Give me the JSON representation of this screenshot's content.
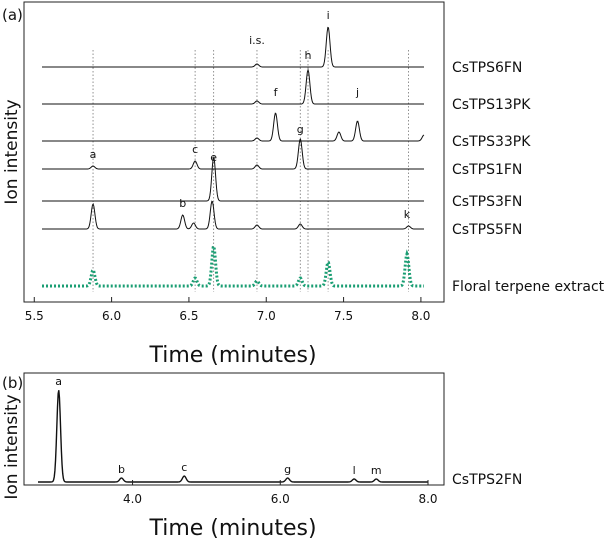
{
  "chart_data": [
    {
      "type": "line",
      "panel_label": "(a)",
      "xlabel": "Time (minutes)",
      "ylabel": "Ion intensity",
      "xlim": [
        5.42,
        8.05
      ],
      "xticks": [
        "5.5",
        "6.0",
        "6.5",
        "7.0",
        "7.5",
        "8.0"
      ],
      "grid": false,
      "series": [
        {
          "name": "CsTPS6FN",
          "baseline": 0,
          "color": "#111111",
          "dotted": false,
          "peaks": [
            {
              "x": 6.94,
              "h": 3
            },
            {
              "x": 7.4,
              "h": 40
            }
          ]
        },
        {
          "name": "CsTPS13PK",
          "baseline": 1,
          "color": "#111111",
          "dotted": false,
          "peaks": [
            {
              "x": 6.94,
              "h": 3
            },
            {
              "x": 7.27,
              "h": 34
            }
          ]
        },
        {
          "name": "CsTPS33PK",
          "baseline": 2,
          "color": "#111111",
          "dotted": false,
          "peaks": [
            {
              "x": 6.94,
              "h": 3
            },
            {
              "x": 7.06,
              "h": 28
            },
            {
              "x": 7.47,
              "h": 9
            },
            {
              "x": 7.59,
              "h": 20
            },
            {
              "x": 8.02,
              "h": 6
            }
          ]
        },
        {
          "name": "CsTPS1FN",
          "baseline": 3,
          "color": "#111111",
          "dotted": false,
          "peaks": [
            {
              "x": 5.88,
              "h": 3
            },
            {
              "x": 6.54,
              "h": 8
            },
            {
              "x": 6.94,
              "h": 4
            },
            {
              "x": 7.22,
              "h": 30
            }
          ]
        },
        {
          "name": "CsTPS3FN",
          "baseline": 4,
          "color": "#111111",
          "dotted": false,
          "peaks": [
            {
              "x": 6.66,
              "h": 44
            }
          ]
        },
        {
          "name": "CsTPS5FN",
          "baseline": 5,
          "color": "#111111",
          "dotted": false,
          "peaks": [
            {
              "x": 5.88,
              "h": 25
            },
            {
              "x": 6.46,
              "h": 14
            },
            {
              "x": 6.53,
              "h": 6
            },
            {
              "x": 6.65,
              "h": 28
            },
            {
              "x": 6.94,
              "h": 4
            },
            {
              "x": 7.22,
              "h": 5
            },
            {
              "x": 7.92,
              "h": 3
            }
          ]
        },
        {
          "name": "Floral terpene extract",
          "baseline": 6,
          "color": "#1a9e73",
          "dotted": true,
          "peaks": [
            {
              "x": 5.88,
              "h": 16
            },
            {
              "x": 6.54,
              "h": 8
            },
            {
              "x": 6.66,
              "h": 40
            },
            {
              "x": 6.94,
              "h": 5
            },
            {
              "x": 7.22,
              "h": 8
            },
            {
              "x": 7.4,
              "h": 24
            },
            {
              "x": 7.91,
              "h": 32
            }
          ]
        }
      ],
      "annotations": [
        {
          "label": "a",
          "x": 5.88,
          "trace": 3
        },
        {
          "label": "b",
          "x": 6.46,
          "trace": 5
        },
        {
          "label": "c",
          "x": 6.54,
          "trace": 3
        },
        {
          "label": "e",
          "x": 6.66,
          "trace": 3
        },
        {
          "label": "i.s.",
          "x": 6.94,
          "trace": 0
        },
        {
          "label": "f",
          "x": 7.06,
          "trace": 1
        },
        {
          "label": "g",
          "x": 7.22,
          "trace": 2
        },
        {
          "label": "h",
          "x": 7.27,
          "trace": 0
        },
        {
          "label": "i",
          "x": 7.4,
          "trace": 0
        },
        {
          "label": "j",
          "x": 7.59,
          "trace": 1
        },
        {
          "label": "k",
          "x": 7.91,
          "trace": 5
        }
      ],
      "reference_lines": [
        5.88,
        6.54,
        6.66,
        6.94,
        7.22,
        7.27,
        7.4,
        7.92
      ]
    },
    {
      "type": "line",
      "panel_label": "(b)",
      "xlabel": "Time (minutes)",
      "ylabel": "Ion intensity",
      "xlim": [
        2.55,
        8.05
      ],
      "xticks": [
        "4.0",
        "6.0",
        "8.0"
      ],
      "xtick_values": [
        4.0,
        6.0,
        8.0
      ],
      "grid": false,
      "series": [
        {
          "name": "CsTPS2FN",
          "color": "#111111",
          "peaks": [
            {
              "x": 3.0,
              "h": 92
            },
            {
              "x": 3.85,
              "h": 4
            },
            {
              "x": 4.7,
              "h": 6
            },
            {
              "x": 6.1,
              "h": 4
            },
            {
              "x": 7.0,
              "h": 3
            },
            {
              "x": 7.3,
              "h": 3
            }
          ]
        }
      ],
      "annotations": [
        {
          "label": "a",
          "x": 3.0
        },
        {
          "label": "b",
          "x": 3.85
        },
        {
          "label": "c",
          "x": 4.7
        },
        {
          "label": "g",
          "x": 6.1
        },
        {
          "label": "l",
          "x": 7.0
        },
        {
          "label": "m",
          "x": 7.3
        }
      ]
    }
  ]
}
